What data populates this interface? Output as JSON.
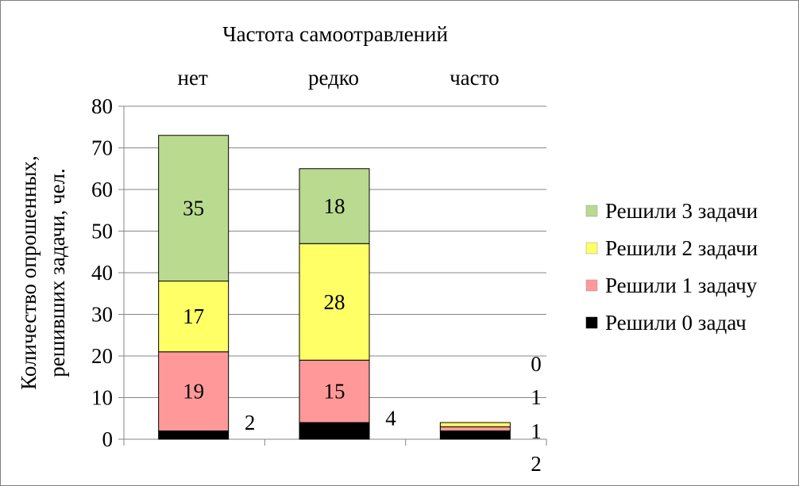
{
  "chart_data": {
    "type": "bar",
    "stacked": true,
    "title": "Частота самоотравлений",
    "ylabel_lines": [
      "Количество опрошенных,",
      "решивших задачи, чел."
    ],
    "xlabel": "",
    "categories": [
      "нет",
      "редко",
      "часто"
    ],
    "category_axis_position": "top",
    "ylim": [
      0,
      80
    ],
    "yticks": [
      "0",
      "10",
      "20",
      "30",
      "40",
      "50",
      "60",
      "70",
      "80"
    ],
    "grid": true,
    "legend_position": "right",
    "series": [
      {
        "name": "Решили 0 задач",
        "values": [
          2,
          4,
          2
        ],
        "color": "#000000",
        "labels": [
          "2",
          "4",
          "2"
        ]
      },
      {
        "name": "Решили 1 задачу",
        "values": [
          19,
          15,
          1
        ],
        "color": "#ff9999",
        "labels": [
          "19",
          "15",
          "1"
        ]
      },
      {
        "name": "Решили 2 задачи",
        "values": [
          17,
          28,
          1
        ],
        "color": "#ffff66",
        "labels": [
          "17",
          "28",
          "1"
        ]
      },
      {
        "name": "Решили 3 задачи",
        "values": [
          35,
          18,
          0
        ],
        "color": "#b9da8f",
        "labels": [
          "35",
          "18",
          "0"
        ]
      }
    ]
  }
}
